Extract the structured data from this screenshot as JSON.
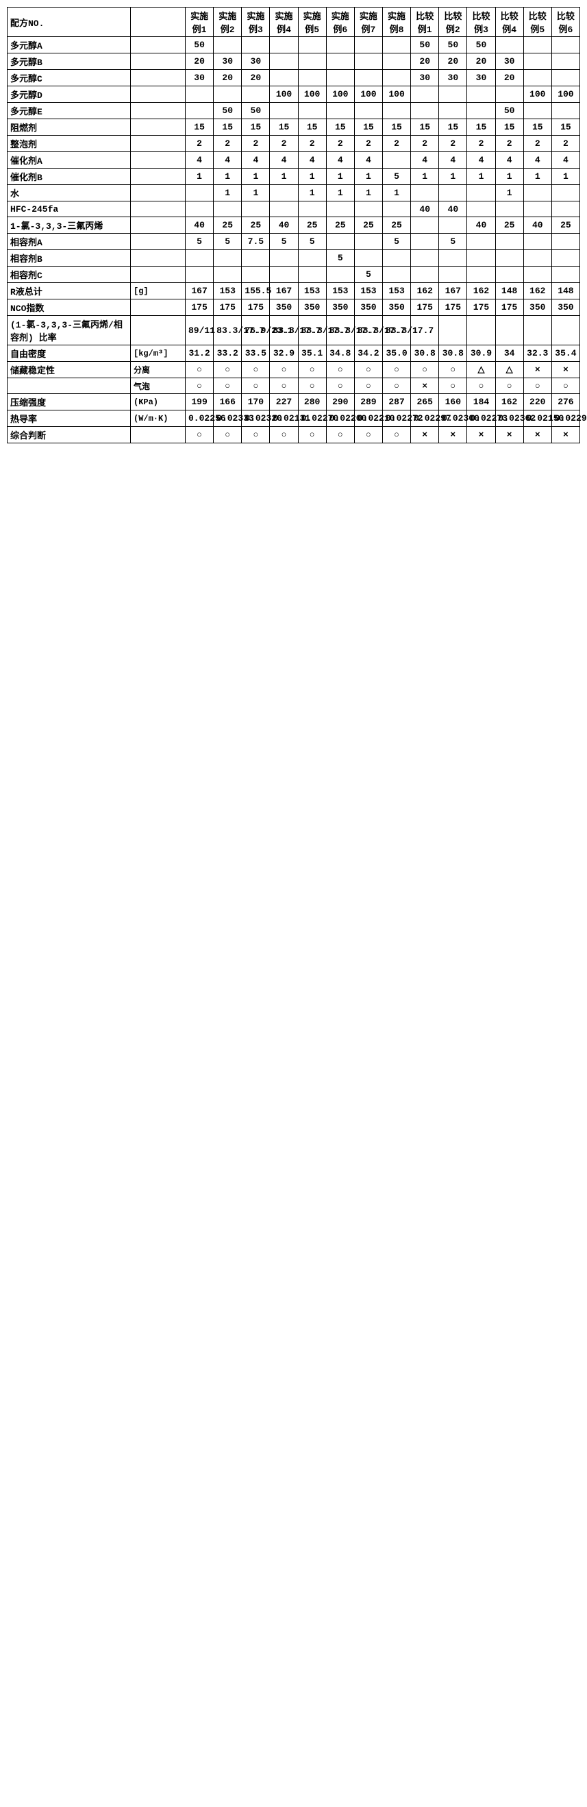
{
  "table": {
    "type": "table",
    "header": [
      "配方NO.",
      "",
      "实施例1",
      "实施例2",
      "实施例3",
      "实施例4",
      "实施例5",
      "实施例6",
      "实施例7",
      "实施例8",
      "比较例1",
      "比较例2",
      "比较例3",
      "比较例4",
      "比较例5",
      "比较例6"
    ],
    "rows": [
      {
        "label": "多元醇A",
        "unit": "",
        "cells": [
          "50",
          "",
          "",
          "",
          "",
          "",
          "",
          "",
          "50",
          "50",
          "50",
          "",
          "",
          ""
        ]
      },
      {
        "label": "多元醇B",
        "unit": "",
        "cells": [
          "20",
          "30",
          "30",
          "",
          "",
          "",
          "",
          "",
          "20",
          "20",
          "20",
          "30",
          "",
          ""
        ]
      },
      {
        "label": "多元醇C",
        "unit": "",
        "cells": [
          "30",
          "20",
          "20",
          "",
          "",
          "",
          "",
          "",
          "30",
          "30",
          "30",
          "20",
          "",
          ""
        ]
      },
      {
        "label": "多元醇D",
        "unit": "",
        "cells": [
          "",
          "",
          "",
          "100",
          "100",
          "100",
          "100",
          "100",
          "",
          "",
          "",
          "",
          "100",
          "100"
        ]
      },
      {
        "label": "多元醇E",
        "unit": "",
        "cells": [
          "",
          "50",
          "50",
          "",
          "",
          "",
          "",
          "",
          "",
          "",
          "",
          "50",
          "",
          ""
        ]
      },
      {
        "label": "阻燃剂",
        "unit": "",
        "cells": [
          "15",
          "15",
          "15",
          "15",
          "15",
          "15",
          "15",
          "15",
          "15",
          "15",
          "15",
          "15",
          "15",
          "15"
        ]
      },
      {
        "label": "整泡剂",
        "unit": "",
        "cells": [
          "2",
          "2",
          "2",
          "2",
          "2",
          "2",
          "2",
          "2",
          "2",
          "2",
          "2",
          "2",
          "2",
          "2"
        ]
      },
      {
        "label": "催化剂A",
        "unit": "",
        "cells": [
          "4",
          "4",
          "4",
          "4",
          "4",
          "4",
          "4",
          "",
          "4",
          "4",
          "4",
          "4",
          "4",
          "4"
        ]
      },
      {
        "label": "催化剂B",
        "unit": "",
        "cells": [
          "1",
          "1",
          "1",
          "1",
          "1",
          "1",
          "1",
          "5",
          "1",
          "1",
          "1",
          "1",
          "1",
          "1"
        ]
      },
      {
        "label": "水",
        "unit": "",
        "cells": [
          "",
          "1",
          "1",
          "",
          "1",
          "1",
          "1",
          "1",
          "",
          "",
          "",
          "1",
          "",
          ""
        ]
      },
      {
        "label": "HFC-245fa",
        "unit": "",
        "cells": [
          "",
          "",
          "",
          "",
          "",
          "",
          "",
          "",
          "40",
          "40",
          "",
          "",
          "",
          ""
        ]
      },
      {
        "label": "1-氯-3,3,3-三氟丙烯",
        "unit": "",
        "cells": [
          "40",
          "25",
          "25",
          "40",
          "25",
          "25",
          "25",
          "25",
          "",
          "",
          "40",
          "25",
          "40",
          "25"
        ]
      },
      {
        "label": "相容剂A",
        "unit": "",
        "cells": [
          "5",
          "5",
          "7.5",
          "5",
          "5",
          "",
          "",
          "5",
          "",
          "5",
          "",
          "",
          "",
          ""
        ]
      },
      {
        "label": "相容剂B",
        "unit": "",
        "cells": [
          "",
          "",
          "",
          "",
          "",
          "5",
          "",
          "",
          "",
          "",
          "",
          "",
          "",
          ""
        ]
      },
      {
        "label": "相容剂C",
        "unit": "",
        "cells": [
          "",
          "",
          "",
          "",
          "",
          "",
          "5",
          "",
          "",
          "",
          "",
          "",
          "",
          ""
        ]
      },
      {
        "label": "R液总计",
        "unit": "[g]",
        "cells": [
          "167",
          "153",
          "155.5",
          "167",
          "153",
          "153",
          "153",
          "153",
          "162",
          "167",
          "162",
          "148",
          "162",
          "148"
        ]
      },
      {
        "label": "NCO指数",
        "unit": "",
        "cells": [
          "175",
          "175",
          "175",
          "350",
          "350",
          "350",
          "350",
          "350",
          "175",
          "175",
          "175",
          "175",
          "350",
          "350"
        ]
      },
      {
        "label": "(1-氯-3,3,3-三氟丙烯/相容剂) 比率",
        "unit": "",
        "cells": [
          "89/11",
          "83.3/17.7",
          "76.9/23.1",
          "83.3/17.7",
          "83.3/17.7",
          "83.3/17.7",
          "83.3/17.7",
          "83.3/17.7",
          "",
          "",
          "",
          "",
          "",
          ""
        ]
      },
      {
        "label": "自由密度",
        "unit": "[kg/m³]",
        "cells": [
          "31.2",
          "33.2",
          "33.5",
          "32.9",
          "35.1",
          "34.8",
          "34.2",
          "35.0",
          "30.8",
          "30.8",
          "30.9",
          "34",
          "32.3",
          "35.4"
        ]
      },
      {
        "label": "储藏稳定性",
        "unit": "分离",
        "cells": [
          "○",
          "○",
          "○",
          "○",
          "○",
          "○",
          "○",
          "○",
          "○",
          "○",
          "△",
          "△",
          "×",
          "×"
        ]
      },
      {
        "label": "",
        "unit": "气泡",
        "cells": [
          "○",
          "○",
          "○",
          "○",
          "○",
          "○",
          "○",
          "○",
          "×",
          "○",
          "○",
          "○",
          "○",
          "○"
        ]
      },
      {
        "label": "压缩强度",
        "unit": "(KPa)",
        "cells": [
          "199",
          "166",
          "170",
          "227",
          "280",
          "290",
          "289",
          "287",
          "265",
          "160",
          "184",
          "162",
          "220",
          "276"
        ]
      },
      {
        "label": "热导率",
        "unit": "(W/m·K)",
        "cells": [
          "0.02256",
          "0.02333",
          "0.02320",
          "0.02131",
          "0.02270",
          "0.02200",
          "0.02210",
          "0.02272",
          "0.02297",
          "0.02300",
          "0.02273",
          "0.02362",
          "0.02150",
          "0.02290"
        ]
      },
      {
        "label": "综合判断",
        "unit": "",
        "cells": [
          "○",
          "○",
          "○",
          "○",
          "○",
          "○",
          "○",
          "○",
          "×",
          "×",
          "×",
          "×",
          "×",
          "×"
        ]
      }
    ],
    "border_color": "#000000",
    "background_color": "#ffffff",
    "text_color": "#000000",
    "font_size": 13,
    "font_weight": "bold"
  }
}
